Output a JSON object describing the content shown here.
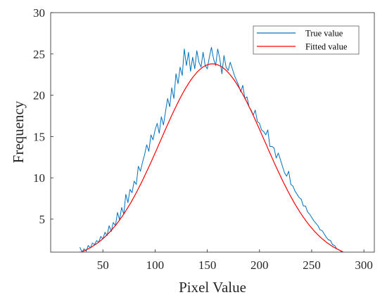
{
  "chart_data": {
    "type": "line",
    "xlabel": "Pixel Value",
    "ylabel": "Frequency",
    "xlim": [
      0,
      310
    ],
    "ylim": [
      1,
      30
    ],
    "x_ticks": [
      50,
      100,
      150,
      200,
      250,
      300
    ],
    "y_ticks": [
      5,
      10,
      15,
      20,
      25,
      30
    ],
    "grid": false,
    "legend_position": "top-right",
    "series": [
      {
        "name": "True value",
        "color": "#0072BD",
        "x": [
          28,
          30,
          32,
          34,
          36,
          38,
          40,
          42,
          44,
          46,
          48,
          50,
          52,
          54,
          56,
          58,
          60,
          62,
          64,
          66,
          68,
          70,
          72,
          74,
          76,
          78,
          80,
          82,
          84,
          86,
          88,
          90,
          92,
          94,
          96,
          98,
          100,
          102,
          104,
          106,
          108,
          110,
          112,
          114,
          116,
          118,
          120,
          122,
          124,
          126,
          128,
          130,
          132,
          134,
          136,
          138,
          140,
          142,
          144,
          146,
          148,
          150,
          152,
          154,
          156,
          158,
          160,
          162,
          164,
          166,
          168,
          170,
          172,
          174,
          176,
          178,
          180,
          182,
          184,
          186,
          188,
          190,
          192,
          194,
          196,
          198,
          200,
          202,
          204,
          206,
          208,
          210,
          212,
          214,
          216,
          218,
          220,
          222,
          224,
          226,
          228,
          230,
          232,
          234,
          236,
          238,
          240,
          242,
          244,
          246,
          248,
          250,
          252,
          254,
          256,
          258,
          260,
          262,
          264,
          266,
          268,
          270,
          272,
          274,
          276,
          278,
          280
        ],
        "y": [
          1.6,
          1.0,
          1.4,
          1.1,
          1.8,
          1.5,
          2.1,
          1.9,
          2.4,
          2.2,
          2.9,
          2.6,
          3.4,
          3.0,
          4.2,
          3.5,
          4.6,
          4.2,
          5.8,
          4.9,
          6.4,
          5.6,
          8.0,
          7.0,
          8.6,
          8.2,
          9.6,
          9.2,
          11.4,
          10.8,
          11.9,
          12.8,
          14.0,
          13.2,
          15.2,
          14.6,
          15.8,
          16.6,
          15.4,
          17.4,
          16.4,
          18.0,
          19.6,
          18.6,
          20.9,
          19.6,
          22.6,
          21.4,
          23.4,
          22.4,
          25.6,
          23.6,
          25.2,
          22.9,
          24.6,
          23.2,
          25.4,
          24.0,
          23.4,
          25.2,
          23.6,
          23.2,
          24.6,
          25.8,
          24.4,
          23.6,
          25.6,
          24.4,
          22.6,
          24.8,
          23.4,
          23.0,
          24.0,
          23.2,
          22.4,
          21.8,
          21.2,
          20.4,
          21.2,
          19.6,
          19.8,
          18.6,
          18.2,
          17.6,
          18.2,
          16.8,
          16.6,
          15.8,
          15.6,
          15.2,
          15.8,
          13.8,
          13.8,
          13.6,
          12.4,
          13.0,
          12.2,
          11.4,
          10.6,
          10.2,
          10.8,
          9.2,
          9.0,
          8.4,
          8.0,
          7.6,
          7.4,
          6.6,
          6.6,
          5.9,
          5.6,
          5.2,
          4.8,
          4.5,
          4.2,
          3.7,
          3.6,
          3.2,
          2.8,
          2.5,
          2.4,
          1.9,
          1.8,
          1.4,
          1.3,
          1.1,
          0.9
        ]
      },
      {
        "name": "Fitted value",
        "color": "#FF0000",
        "fit": {
          "amplitude": 23.8,
          "mean": 155,
          "sigma": 50,
          "x_start": 28,
          "x_end": 280
        }
      }
    ]
  }
}
